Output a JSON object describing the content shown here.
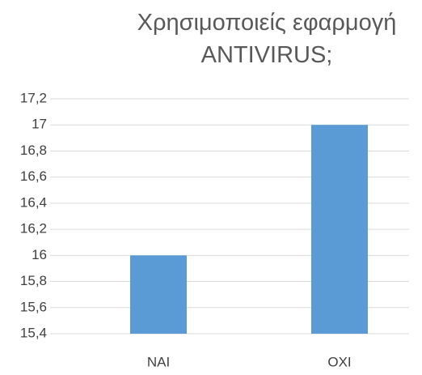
{
  "chart_data": {
    "type": "bar",
    "title": "Χρησιμοποιείς εφαρμογή ANTIVIRUS;",
    "categories": [
      "NAI",
      "OXI"
    ],
    "values": [
      16,
      17
    ],
    "color": "#5b9bd5",
    "ylim": [
      15.4,
      17.2
    ],
    "yticks": [
      {
        "value": 15.4,
        "label": "15,4"
      },
      {
        "value": 15.6,
        "label": "15,6"
      },
      {
        "value": 15.8,
        "label": "15,8"
      },
      16,
      {
        "value": 16.2,
        "label": "16,2"
      },
      {
        "value": 16.4,
        "label": "16,4"
      },
      {
        "value": 16.6,
        "label": "16,6"
      },
      {
        "value": 16.8,
        "label": "16,8"
      },
      17,
      {
        "value": 17.2,
        "label": "17,2"
      }
    ],
    "grid": true
  }
}
